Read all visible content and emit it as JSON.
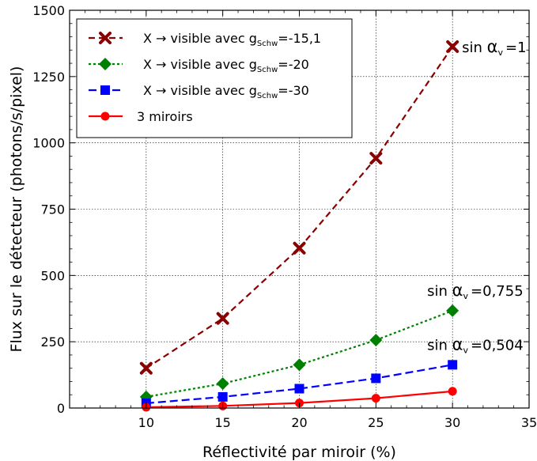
{
  "chart_data": {
    "type": "line",
    "xlabel": "Réflectivité par miroir (%)",
    "ylabel": "Flux sur le détecteur (photons/s/pixel)",
    "xlim": [
      5,
      35
    ],
    "ylim": [
      0,
      1500
    ],
    "xticks": [
      10,
      15,
      20,
      25,
      30,
      35
    ],
    "yticks": [
      0,
      250,
      500,
      750,
      1000,
      1250,
      1500
    ],
    "grid": true,
    "legend_position": "top-left",
    "x": [
      10,
      15,
      20,
      25,
      30
    ],
    "series": [
      {
        "id": "g151",
        "name_prefix": "X → visible avec g",
        "name_sub": "Schw",
        "name_suffix": "=-15,1",
        "color": "#8b0000",
        "dash": "8,5",
        "marker": "x",
        "values": [
          150,
          338,
          603,
          942,
          1363
        ]
      },
      {
        "id": "g20",
        "name_prefix": "X → visible avec g",
        "name_sub": "Schw",
        "name_suffix": "=-20",
        "color": "#008000",
        "dash": "3,3",
        "marker": "diamond",
        "values": [
          42,
          92,
          163,
          256,
          367
        ]
      },
      {
        "id": "g30",
        "name_prefix": "X → visible avec g",
        "name_sub": "Schw",
        "name_suffix": "=-30",
        "color": "#0000ff",
        "dash": "10,5",
        "marker": "square",
        "values": [
          18,
          42,
          73,
          112,
          163
        ]
      },
      {
        "id": "m3",
        "name_prefix": "3 miroirs",
        "name_sub": "",
        "name_suffix": "",
        "color": "#ff0000",
        "dash": "",
        "marker": "circle",
        "values": [
          3,
          8,
          19,
          37,
          63
        ]
      }
    ],
    "annotations": [
      {
        "prefix": "sin ",
        "alpha": "α",
        "sub": "v",
        "value": "=1",
        "x": 30,
        "y": 1363
      },
      {
        "prefix": "sin ",
        "alpha": "α",
        "sub": "v",
        "value": "=0,755",
        "x": 30,
        "y": 367
      },
      {
        "prefix": "sin ",
        "alpha": "α",
        "sub": "v",
        "value": "=0,504",
        "x": 30,
        "y": 163
      }
    ]
  }
}
